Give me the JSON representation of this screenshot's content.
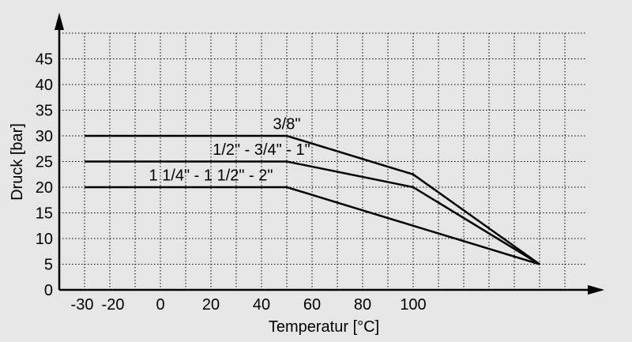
{
  "chart_data": {
    "type": "line",
    "xlabel": "Temperatur [°C]",
    "ylabel": "Druck [bar]",
    "xlim": [
      -40,
      160
    ],
    "ylim": [
      0,
      50
    ],
    "x_ticks": [
      -30,
      -20,
      0,
      20,
      40,
      60,
      80,
      100
    ],
    "x_tick_labels": [
      "-30",
      "-20",
      "0",
      "20",
      "40",
      "60",
      "80",
      "100"
    ],
    "y_ticks": [
      0,
      5,
      10,
      15,
      20,
      25,
      30,
      35,
      40,
      45
    ],
    "y_tick_labels": [
      "0",
      "5",
      "10",
      "15",
      "20",
      "25",
      "30",
      "35",
      "40",
      "45"
    ],
    "grid": true,
    "series": [
      {
        "name": "3/8\"",
        "label_anchor": [
          50,
          31.3
        ],
        "points": [
          [
            -30,
            30
          ],
          [
            50,
            30
          ],
          [
            100,
            22.5
          ],
          [
            150,
            5
          ]
        ]
      },
      {
        "name": "1/2\" - 3/4\" - 1\"",
        "label_anchor": [
          40,
          26.3
        ],
        "points": [
          [
            -30,
            25
          ],
          [
            50,
            25
          ],
          [
            100,
            20
          ],
          [
            150,
            5
          ]
        ]
      },
      {
        "name": "1 1/4\" - 1 1/2\" - 2\"",
        "label_anchor": [
          20,
          21.3
        ],
        "points": [
          [
            -30,
            20
          ],
          [
            50,
            20
          ],
          [
            100,
            12.5
          ],
          [
            150,
            5
          ]
        ]
      }
    ]
  }
}
